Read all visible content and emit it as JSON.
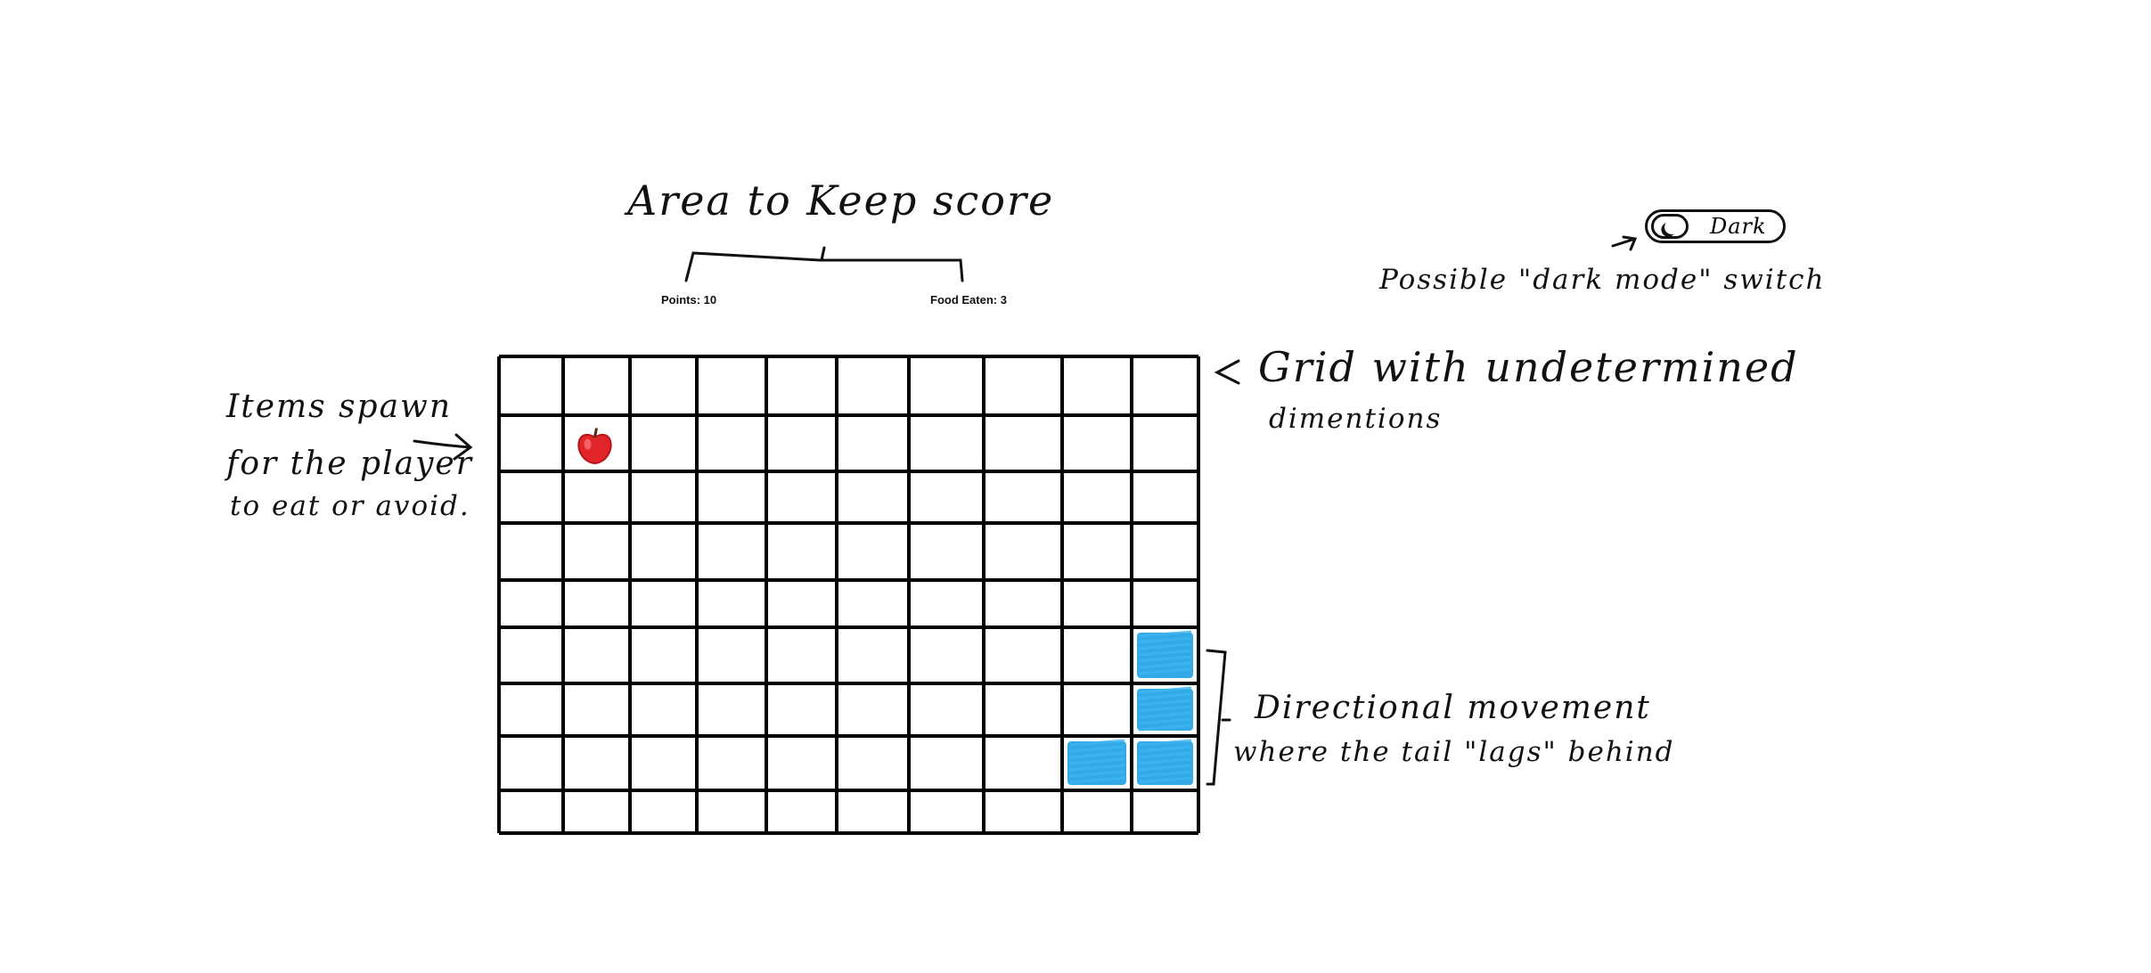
{
  "annotations": {
    "score_area": "Area to Keep score",
    "dark_mode_note": "Possible \"dark mode\" switch",
    "grid_note_line1": "Grid with undetermined",
    "grid_note_line2": "dimentions",
    "items_line1": "Items spawn",
    "items_line2": "for the player",
    "items_line3": "to eat or avoid.",
    "movement_line1": "Directional movement",
    "movement_line2": "where the tail \"lags\" behind"
  },
  "score": {
    "points_label": "Points: 10",
    "food_label": "Food Eaten: 3"
  },
  "toggle": {
    "label": "Dark",
    "icon": "moon-icon"
  },
  "grid": {
    "columns": 10,
    "rows": 9,
    "food": {
      "col": 1,
      "row": 1,
      "icon": "apple-icon",
      "color": "#e0252b"
    },
    "snake": {
      "color": "#1ea0e6",
      "segments": [
        {
          "col": 9,
          "row": 5
        },
        {
          "col": 9,
          "row": 6
        },
        {
          "col": 9,
          "row": 7
        },
        {
          "col": 8,
          "row": 7
        }
      ]
    },
    "line_color": "#000000"
  }
}
